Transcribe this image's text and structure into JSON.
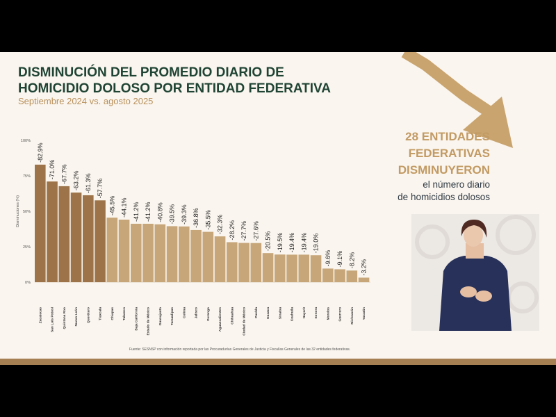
{
  "slide": {
    "title_line1": "DISMINUCIÓN DEL PROMEDIO DIARIO DE",
    "title_line2": "HOMICIDIO DOLOSO POR ENTIDAD FEDERATIVA",
    "subtitle": "Septiembre 2024 vs. agosto 2025",
    "highlight": {
      "line1": "28 ENTIDADES",
      "line2": "FEDERATIVAS",
      "line3": "DISMINUYERON",
      "line4": "el número diario",
      "line5": "de homicidios dolosos"
    },
    "source": "Fuente: SESNSP con información reportada por las Procuradurías Generales de Justicia y Fiscalías Generales de las 32 entidades federativas."
  },
  "colors": {
    "title": "#1f4434",
    "accent_gold": "#c29a63",
    "bar_dark": "#9d7449",
    "bar_light": "#c7a679",
    "background": "#faf5ee",
    "arrow": "#c9a46f"
  },
  "chart_data": {
    "type": "bar",
    "ylabel": "Disminuciones (%)",
    "ylim": [
      0,
      100
    ],
    "yticks": [
      "0%",
      "25%",
      "50%",
      "75%",
      "100%"
    ],
    "categories": [
      "Zacatecas",
      "San Luis Potosí",
      "Quintana Roo",
      "Nuevo León",
      "Querétaro",
      "Tlaxcala",
      "Chiapas",
      "Tabasco",
      "Baja California",
      "Estado de México",
      "Guanajuato",
      "Tamaulipas",
      "Colima",
      "Jalisco",
      "Durango",
      "Aguascalientes",
      "Chihuahua",
      "Ciudad de México",
      "Puebla",
      "Oaxaca",
      "Sinaloa",
      "Coahuila",
      "Nayarit",
      "Sonora",
      "Morelos",
      "Guerrero",
      "Michoacán",
      "Yucatán"
    ],
    "values": [
      82.9,
      71.0,
      67.7,
      63.2,
      61.3,
      57.7,
      45.5,
      44.1,
      41.2,
      41.2,
      40.8,
      39.5,
      39.3,
      36.8,
      35.5,
      32.3,
      28.2,
      27.7,
      27.6,
      20.5,
      19.5,
      19.4,
      19.4,
      19.0,
      9.6,
      9.1,
      8.2,
      3.2
    ],
    "labels": [
      "-82.9%",
      "-71.0%",
      "-67.7%",
      "-63.2%",
      "-61.3%",
      "-57.7%",
      "-45.5%",
      "-44.1%",
      "-41.2%",
      "-41.2%",
      "-40.8%",
      "-39.5%",
      "-39.3%",
      "-36.8%",
      "-35.5%",
      "-32.3%",
      "-28.2%",
      "-27.7%",
      "-27.6%",
      "-20.5%",
      "-19.5%",
      "-19.4%",
      "-19.4%",
      "-19.0%",
      "-9.6%",
      "-9.1%",
      "-8.2%",
      "-3.2%"
    ],
    "highlighted_count": 6,
    "grid": false,
    "legend": "none"
  }
}
